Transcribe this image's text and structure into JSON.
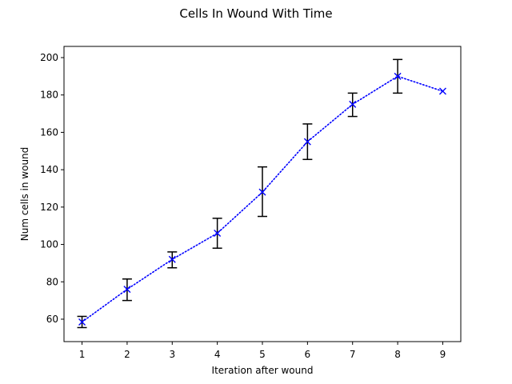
{
  "chart_data": {
    "type": "line",
    "title": "Cells In Wound With Time",
    "xlabel": "Iteration after wound",
    "ylabel": "Num cells in wound",
    "xlim": [
      0.6,
      9.4
    ],
    "ylim": [
      48,
      206
    ],
    "xticks": [
      1,
      2,
      3,
      4,
      5,
      6,
      7,
      8,
      9
    ],
    "yticks": [
      60,
      80,
      100,
      120,
      140,
      160,
      180,
      200
    ],
    "grid": false,
    "series": [
      {
        "line_style": "dotted",
        "marker": "x",
        "color": "#0000ff",
        "errorbar_color": "#000000",
        "x": [
          1,
          2,
          3,
          4,
          5,
          6,
          7,
          8,
          9
        ],
        "y": [
          58.5,
          76,
          92,
          106,
          128,
          155,
          175,
          190,
          182
        ],
        "err_low": [
          55.5,
          70,
          87.5,
          98,
          115,
          145.5,
          168.5,
          181,
          182
        ],
        "err_high": [
          61.5,
          81.5,
          96,
          114,
          141.5,
          164.5,
          181,
          199,
          182
        ]
      }
    ]
  }
}
